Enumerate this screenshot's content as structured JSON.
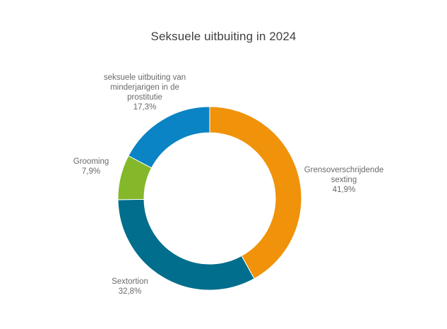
{
  "chart_data": {
    "type": "pie",
    "title": "Seksuele uitbuiting in 2024",
    "slices": [
      {
        "label_lines": [
          "Grensoverschrijdende",
          "sexting"
        ],
        "value_text": "41,9%",
        "value": 41.9,
        "color": "#f0920a"
      },
      {
        "label_lines": [
          "Sextortion"
        ],
        "value_text": "32,8%",
        "value": 32.8,
        "color": "#006e8c"
      },
      {
        "label_lines": [
          "Grooming"
        ],
        "value_text": "7,9%",
        "value": 7.9,
        "color": "#84b82a"
      },
      {
        "label_lines": [
          "seksuele uitbuiting van",
          "minderjarigen in de",
          "prostitutie"
        ],
        "value_text": "17,3%",
        "value": 17.3,
        "color": "#0a84c4"
      }
    ]
  }
}
